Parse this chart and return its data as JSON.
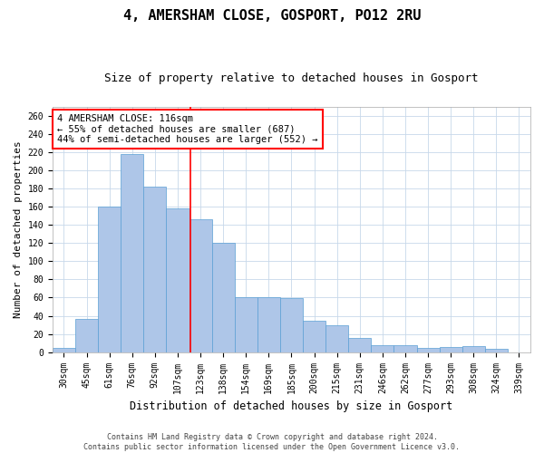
{
  "title1": "4, AMERSHAM CLOSE, GOSPORT, PO12 2RU",
  "title2": "Size of property relative to detached houses in Gosport",
  "xlabel": "Distribution of detached houses by size in Gosport",
  "ylabel": "Number of detached properties",
  "categories": [
    "30sqm",
    "45sqm",
    "61sqm",
    "76sqm",
    "92sqm",
    "107sqm",
    "123sqm",
    "138sqm",
    "154sqm",
    "169sqm",
    "185sqm",
    "200sqm",
    "215sqm",
    "231sqm",
    "246sqm",
    "262sqm",
    "277sqm",
    "293sqm",
    "308sqm",
    "324sqm",
    "339sqm"
  ],
  "values": [
    5,
    37,
    160,
    218,
    182,
    158,
    146,
    120,
    60,
    60,
    59,
    35,
    30,
    16,
    8,
    8,
    5,
    6,
    7,
    4,
    0
  ],
  "bar_color": "#aec6e8",
  "bar_edge_color": "#5a9fd4",
  "grid_color": "#c8d8ea",
  "vline_color": "red",
  "annotation_line1": "4 AMERSHAM CLOSE: 116sqm",
  "annotation_line2": "← 55% of detached houses are smaller (687)",
  "annotation_line3": "44% of semi-detached houses are larger (552) →",
  "annotation_box_color": "white",
  "annotation_box_edge_color": "red",
  "ylim": [
    0,
    270
  ],
  "yticks": [
    0,
    20,
    40,
    60,
    80,
    100,
    120,
    140,
    160,
    180,
    200,
    220,
    240,
    260
  ],
  "footer1": "Contains HM Land Registry data © Crown copyright and database right 2024.",
  "footer2": "Contains public sector information licensed under the Open Government Licence v3.0.",
  "title1_fontsize": 11,
  "title2_fontsize": 9,
  "xlabel_fontsize": 8.5,
  "ylabel_fontsize": 8,
  "tick_fontsize": 7,
  "annotation_fontsize": 7.5,
  "footer_fontsize": 6
}
